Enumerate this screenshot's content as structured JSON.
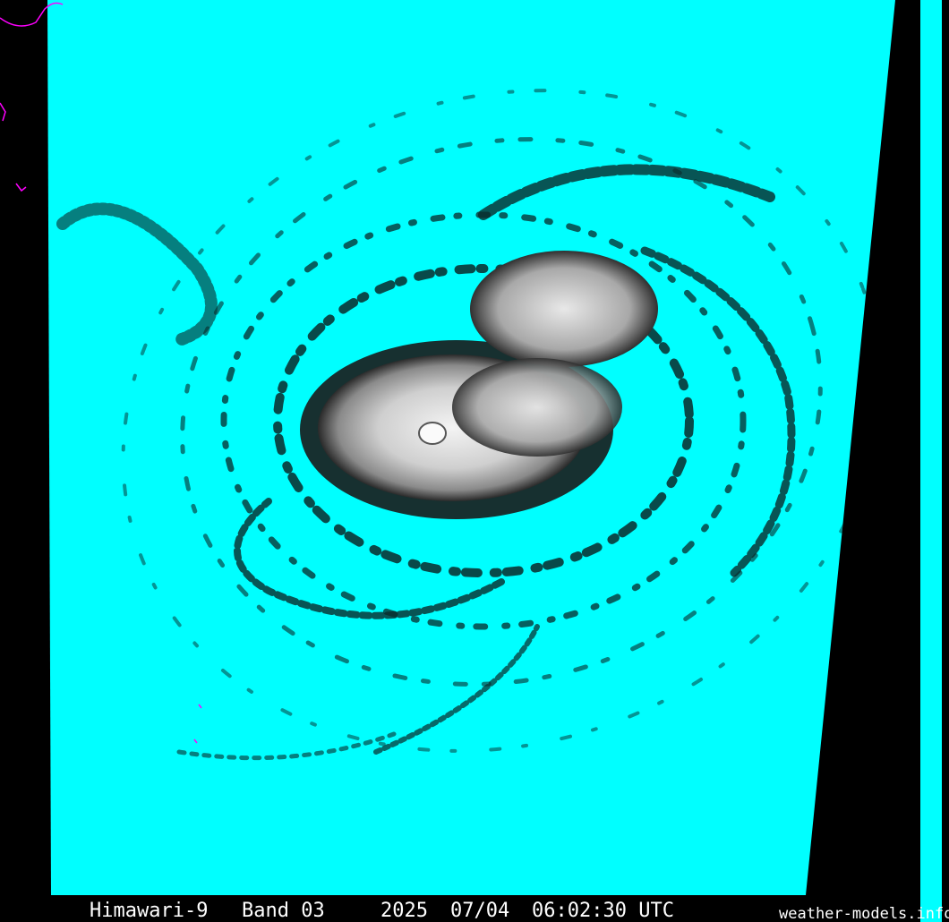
{
  "image": {
    "caption": {
      "satellite": "Himawari-9",
      "band": "Band 03",
      "year": "2025",
      "date": "07/04",
      "time": "06:02:30 UTC"
    },
    "credit": "weather-models.info"
  }
}
